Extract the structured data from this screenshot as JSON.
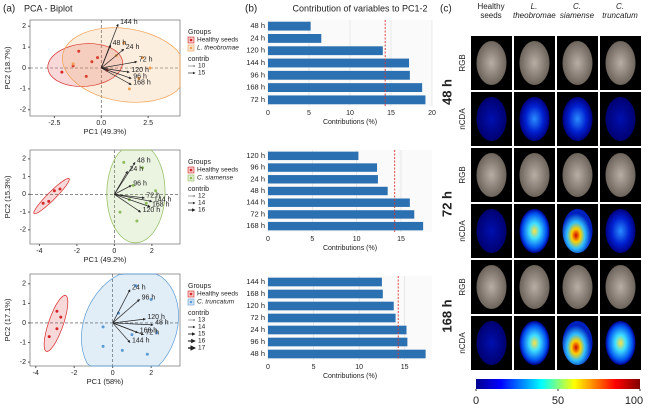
{
  "panels": [
    "(a)",
    "(b)",
    "(c)"
  ],
  "chart_data": [
    {
      "type": "biplot",
      "title": "PCA - Biplot",
      "xlabel": "PC1 (49.3%)",
      "ylabel": "PC2 (18.7%)",
      "xlim": [
        -3.8,
        4.2
      ],
      "xticks": [
        -2.5,
        {
          "value": 0,
          "label": "0.0"
        },
        2.5
      ],
      "ylim": [
        -2.3,
        2.3
      ],
      "yticks": [
        -2,
        -1,
        0,
        1,
        2
      ],
      "legend_title": "Groups",
      "series": [
        {
          "name": "Healthy seeds",
          "color": "#d62728",
          "x": [
            -1.2,
            -0.5,
            0.3,
            -2.1,
            -1.5,
            -0.8,
            -0.2
          ],
          "y": [
            0.8,
            0.3,
            -0.1,
            -0.2,
            0.1,
            -0.4,
            0.5
          ]
        },
        {
          "name": "L. theobromae",
          "color": "#f0a050",
          "x": [
            1.2,
            2.2,
            2.0,
            -1.5,
            0.8,
            1.5,
            2.6
          ],
          "y": [
            1.2,
            0.5,
            -0.5,
            0.2,
            0.6,
            -1.0,
            0.0
          ]
        }
      ],
      "vectors": {
        "labels": [
          "144 h",
          "48 h",
          "24 h",
          "72 h",
          "120 h",
          "96 h",
          "168 h"
        ],
        "x": [
          0.9,
          0.5,
          1.2,
          1.9,
          1.5,
          1.6,
          1.6
        ],
        "y": [
          2.1,
          1.1,
          0.9,
          0.3,
          -0.2,
          -0.5,
          -0.8
        ]
      },
      "contrib_title": "contrib",
      "contrib_legend": [
        10,
        15
      ]
    },
    {
      "type": "biplot",
      "xlabel": "PC1 (49.2%)",
      "ylabel": "PC2 (15.3%)",
      "xlim": [
        -4.5,
        3.5
      ],
      "xticks": [
        -4,
        -2,
        0,
        2
      ],
      "ylim": [
        -2.8,
        2.5
      ],
      "yticks": [
        -2,
        -1,
        0,
        1,
        2
      ],
      "legend_title": "Groups",
      "series": [
        {
          "name": "Healthy seeds",
          "color": "#d62728",
          "x": [
            -3.8,
            -3.5,
            -3.2,
            -2.9
          ],
          "y": [
            -0.5,
            -0.4,
            0.2,
            0.3
          ]
        },
        {
          "name": "C. siamense",
          "color": "#8fbc5a",
          "x": [
            0.5,
            1.5,
            1.0,
            0.8,
            1.7,
            2.2,
            0.3,
            1.2
          ],
          "y": [
            1.8,
            1.5,
            0.5,
            -0.3,
            -0.5,
            0.2,
            -1.0,
            -1.5
          ]
        }
      ],
      "vectors": {
        "labels": [
          "48 h",
          "24 h",
          "96 h",
          "72 h",
          "144 h",
          "168 h",
          "120 h"
        ],
        "x": [
          1.1,
          0.7,
          0.9,
          1.6,
          2.0,
          1.9,
          1.4
        ],
        "y": [
          1.8,
          1.3,
          0.5,
          -0.2,
          -0.4,
          -0.7,
          -1.0
        ]
      },
      "contrib_title": "contrib",
      "contrib_legend": [
        12,
        14,
        16
      ]
    },
    {
      "type": "biplot",
      "xlabel": "PC1 (58%)",
      "ylabel": "PC2 (17.1%)",
      "xlim": [
        -4.3,
        3.5
      ],
      "xticks": [
        -4,
        -2,
        0,
        2
      ],
      "ylim": [
        -2.2,
        2.5
      ],
      "yticks": [
        -2,
        -1,
        0,
        1,
        2
      ],
      "legend_title": "Groups",
      "series": [
        {
          "name": "Healthy seeds",
          "color": "#d62728",
          "x": [
            -3.3,
            -2.9,
            -2.7,
            -2.9
          ],
          "y": [
            -0.7,
            -0.3,
            0.3,
            0.6
          ]
        },
        {
          "name": "C. truncatum",
          "color": "#5b9bd5",
          "x": [
            1.2,
            2.0,
            0.3,
            -0.5,
            1.0,
            2.3,
            0.5,
            1.8,
            -0.5
          ],
          "y": [
            1.9,
            1.2,
            0.5,
            -0.2,
            -0.6,
            -0.5,
            -1.4,
            -1.6,
            -1.2
          ]
        }
      ],
      "vectors": {
        "labels": [
          "24 h",
          "96 h",
          "120 h",
          "48 h",
          "168 h",
          "72 h",
          "144 h"
        ],
        "x": [
          0.9,
          1.4,
          1.7,
          2.1,
          1.3,
          1.6,
          0.9
        ],
        "y": [
          1.7,
          1.2,
          0.2,
          -0.1,
          -0.5,
          -0.6,
          -1.0
        ]
      },
      "contrib_title": "contrib",
      "contrib_legend": [
        13,
        14,
        15,
        16,
        17
      ]
    },
    {
      "type": "hbar",
      "title": "Contribution of variables to PC1-2",
      "xlabel": "Contributions (%)",
      "color": "#2b70b0",
      "categories": [
        "48 h",
        "24 h",
        "120 h",
        "144 h",
        "96 h",
        "168 h",
        "72 h"
      ],
      "values": [
        5.2,
        6.5,
        14.0,
        17.2,
        17.3,
        18.8,
        19.2
      ],
      "xlim": [
        0,
        20
      ],
      "xticks": [
        0,
        5,
        10,
        15,
        20
      ],
      "reference_line": 14.29,
      "grid": true
    },
    {
      "type": "hbar",
      "xlabel": "Contributions (%)",
      "color": "#2b70b0",
      "categories": [
        "120 h",
        "96 h",
        "24 h",
        "48 h",
        "144 h",
        "72 h",
        "168 h"
      ],
      "values": [
        10.2,
        12.3,
        12.4,
        13.5,
        16.0,
        16.5,
        17.5
      ],
      "xlim": [
        0,
        18.5
      ],
      "xticks": [
        0,
        5,
        10,
        15
      ],
      "reference_line": 14.29,
      "grid": true
    },
    {
      "type": "hbar",
      "xlabel": "Contributions (%)",
      "color": "#2b70b0",
      "categories": [
        "144 h",
        "168 h",
        "120 h",
        "72 h",
        "24 h",
        "96 h",
        "48 h"
      ],
      "values": [
        12.5,
        12.6,
        13.8,
        14.0,
        15.2,
        15.3,
        17.3
      ],
      "xlim": [
        0,
        18
      ],
      "xticks": [
        0,
        5,
        10,
        15
      ],
      "reference_line": 14.29,
      "grid": true
    }
  ],
  "image_grid": {
    "columns": [
      "Healthy seeds",
      "L. theobromae",
      "C. siamense",
      "C. truncatum"
    ],
    "groups": [
      {
        "label": "48 h",
        "rows": [
          "RGB",
          "nCDA"
        ]
      },
      {
        "label": "72 h",
        "rows": [
          "RGB",
          "nCDA"
        ]
      },
      {
        "label": "168 h",
        "rows": [
          "RGB",
          "nCDA"
        ]
      }
    ],
    "colorbar": {
      "lim": [
        0,
        100
      ],
      "ticks": [
        0,
        50,
        100
      ]
    }
  }
}
